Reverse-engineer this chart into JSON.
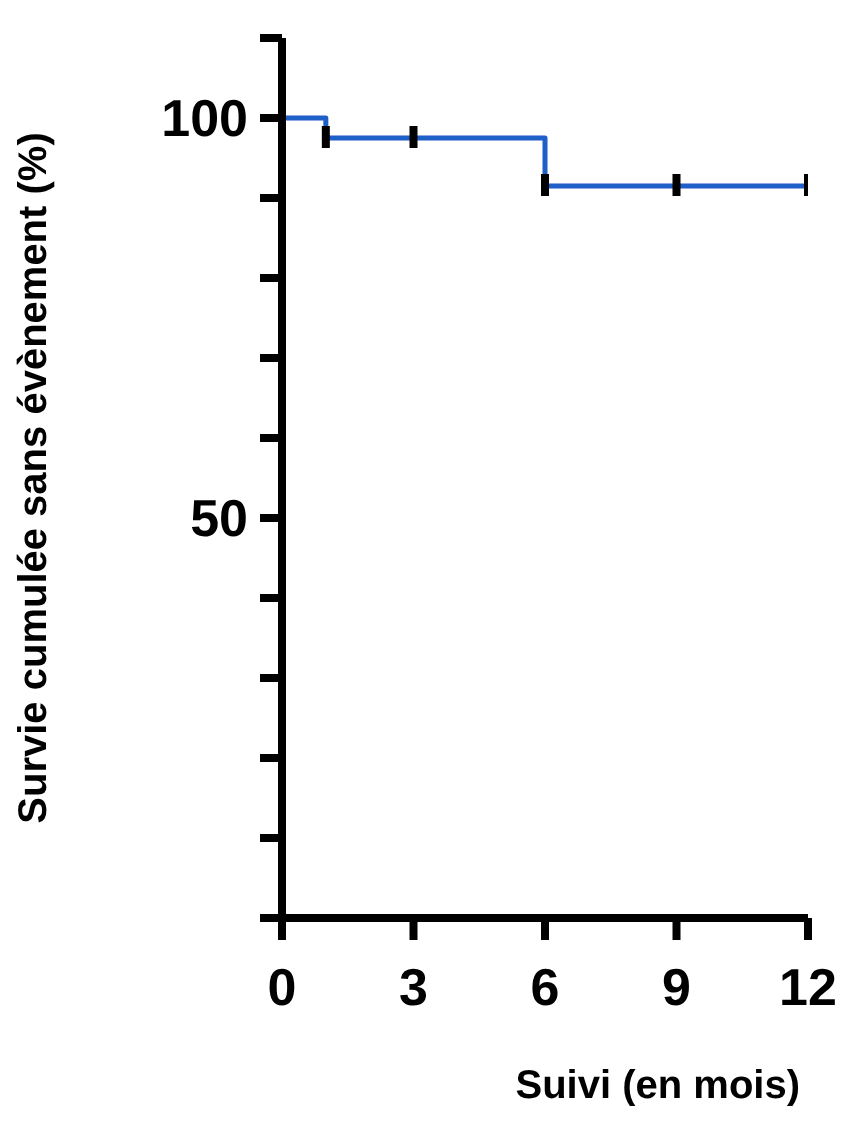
{
  "chart_data": {
    "type": "step",
    "xlabel": "Suivi (en mois)",
    "ylabel": "Survie cumulée sans évènement (%)",
    "xlim": [
      0,
      12
    ],
    "xticks": [
      0,
      3,
      6,
      9,
      12
    ],
    "ylim": [
      0,
      110
    ],
    "yticks": [
      {
        "value": 0,
        "label": null
      },
      {
        "value": 10,
        "label": null
      },
      {
        "value": 20,
        "label": null
      },
      {
        "value": 30,
        "label": null
      },
      {
        "value": 40,
        "label": null
      },
      50,
      {
        "value": 60,
        "label": null
      },
      {
        "value": 70,
        "label": null
      },
      {
        "value": 80,
        "label": null
      },
      {
        "value": 90,
        "label": null
      },
      100,
      {
        "value": 110,
        "label": null
      }
    ],
    "grid": false,
    "legend": false,
    "series": [
      {
        "color": "#1f5fc8",
        "x": [
          0,
          1,
          6,
          12
        ],
        "values": [
          100,
          97.5,
          91.5,
          91.5
        ],
        "marker": "none"
      },
      {
        "type": "scatter",
        "color": "#000000",
        "x": [
          1,
          3,
          6,
          9,
          12
        ],
        "values": [
          97.5,
          97.5,
          91.5,
          91.5,
          91.5
        ]
      }
    ]
  }
}
